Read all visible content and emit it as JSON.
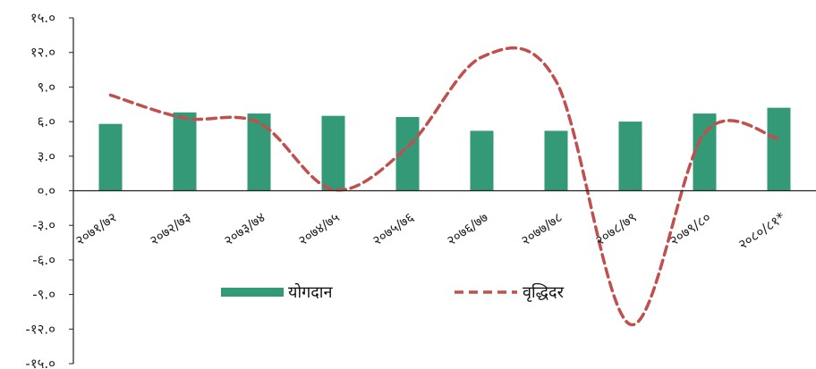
{
  "chart_data": {
    "type": "bar",
    "title": "",
    "xlabel": "",
    "ylabel": "",
    "categories": [
      "२०७१/७२",
      "२०७२/७३",
      "२०७३/७४",
      "२०७४/७५",
      "२०७५/७६",
      "२०७६/७७",
      "२०७७/७८",
      "२०७८/७९",
      "२०७९/८०",
      "२०८०/८१*"
    ],
    "y_ticks": [
      "१५.०",
      "१२.०",
      "९.०",
      "६.०",
      "३.०",
      "०.०",
      "-३.०",
      "-६.०",
      "-९.०",
      "-१२.०",
      "-१५.०"
    ],
    "ylim": [
      -15,
      15
    ],
    "grid": false,
    "legend_position": "bottom",
    "series": [
      {
        "name": "योगदान",
        "type": "bar",
        "color": "#339977",
        "values": [
          5.8,
          6.8,
          6.7,
          6.5,
          6.4,
          5.2,
          5.2,
          6.0,
          6.7,
          7.2
        ]
      },
      {
        "name": "वृद्धिदर",
        "type": "line",
        "style": "dashed",
        "color": "#c0504d",
        "values": [
          8.3,
          6.3,
          5.9,
          0.1,
          3.8,
          11.6,
          9.5,
          -11.6,
          5.0,
          4.5
        ]
      }
    ]
  }
}
